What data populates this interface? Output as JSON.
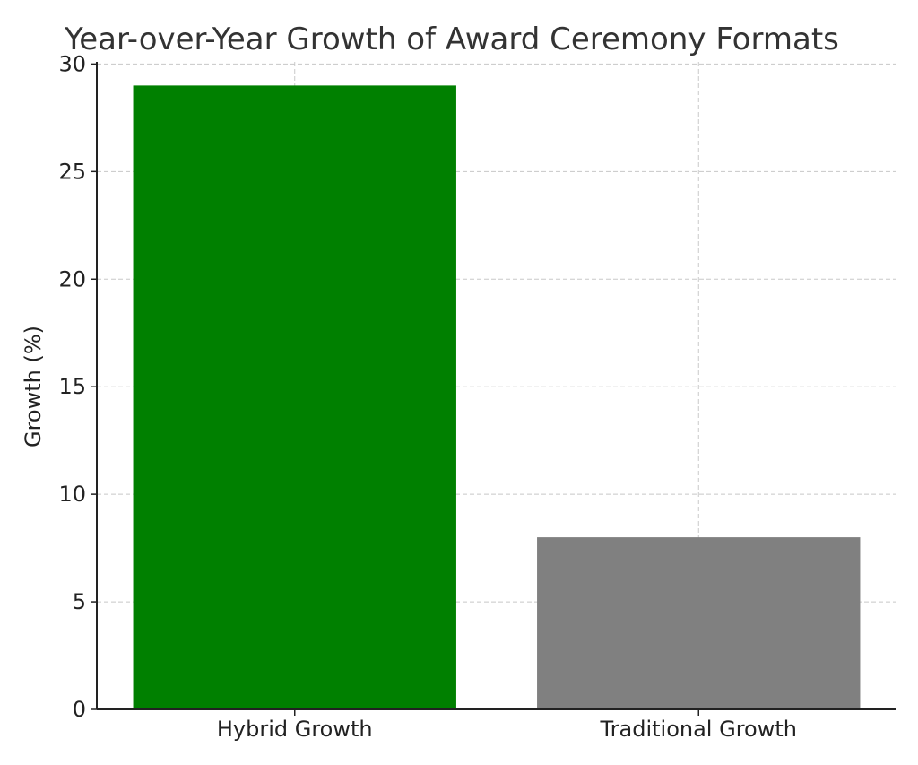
{
  "chart_data": {
    "type": "bar",
    "title": "Year-over-Year Growth of Award Ceremony Formats",
    "xlabel": "",
    "ylabel": "Growth (%)",
    "categories": [
      "Hybrid Growth",
      "Traditional Growth"
    ],
    "values": [
      29,
      8
    ],
    "colors": [
      "#008000",
      "#808080"
    ],
    "ylim": [
      0,
      30.1
    ],
    "yticks": [
      0,
      5,
      10,
      15,
      20,
      25,
      30
    ],
    "grid": true,
    "legend": "none"
  }
}
